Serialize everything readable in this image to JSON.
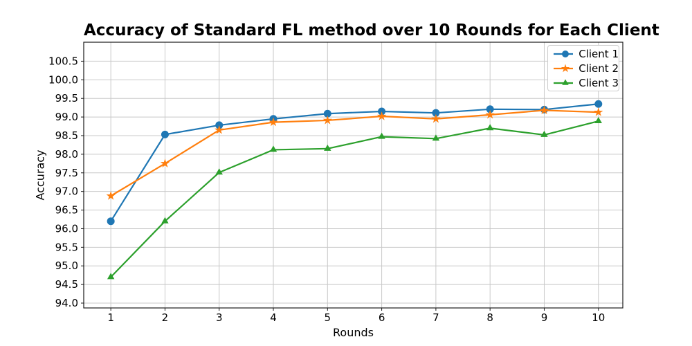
{
  "figure": {
    "background": "#ffffff",
    "grid_color": "#c8c8c8",
    "spine_color": "#1a1a1a",
    "text_color": "#000000"
  },
  "chart_data": {
    "type": "line",
    "title": "Accuracy of Standard FL method over 10 Rounds for Each Client",
    "xlabel": "Rounds",
    "ylabel": "Accuracy",
    "x": [
      1,
      2,
      3,
      4,
      5,
      6,
      7,
      8,
      9,
      10
    ],
    "xticks": [
      1,
      2,
      3,
      4,
      5,
      6,
      7,
      8,
      9,
      10
    ],
    "yticks": [
      94.0,
      94.5,
      95.0,
      95.5,
      96.0,
      96.5,
      97.0,
      97.5,
      98.0,
      98.5,
      99.0,
      99.5,
      100.0,
      100.5
    ],
    "xlim": [
      0.5,
      10.45
    ],
    "ylim": [
      93.87,
      101.01
    ],
    "grid": true,
    "legend": {
      "position": "upper right"
    },
    "series": [
      {
        "name": "Client 1",
        "color": "#1f77b4",
        "marker": "circle",
        "values": [
          96.2,
          98.53,
          98.78,
          98.95,
          99.09,
          99.15,
          99.11,
          99.21,
          99.2,
          99.35
        ]
      },
      {
        "name": "Client 2",
        "color": "#ff7f0e",
        "marker": "star",
        "values": [
          96.88,
          97.75,
          98.65,
          98.86,
          98.91,
          99.02,
          98.95,
          99.06,
          99.18,
          99.13
        ]
      },
      {
        "name": "Client 3",
        "color": "#2ca02c",
        "marker": "triangle-up",
        "values": [
          94.7,
          96.2,
          97.51,
          98.12,
          98.15,
          98.47,
          98.42,
          98.7,
          98.52,
          98.89
        ]
      }
    ]
  }
}
